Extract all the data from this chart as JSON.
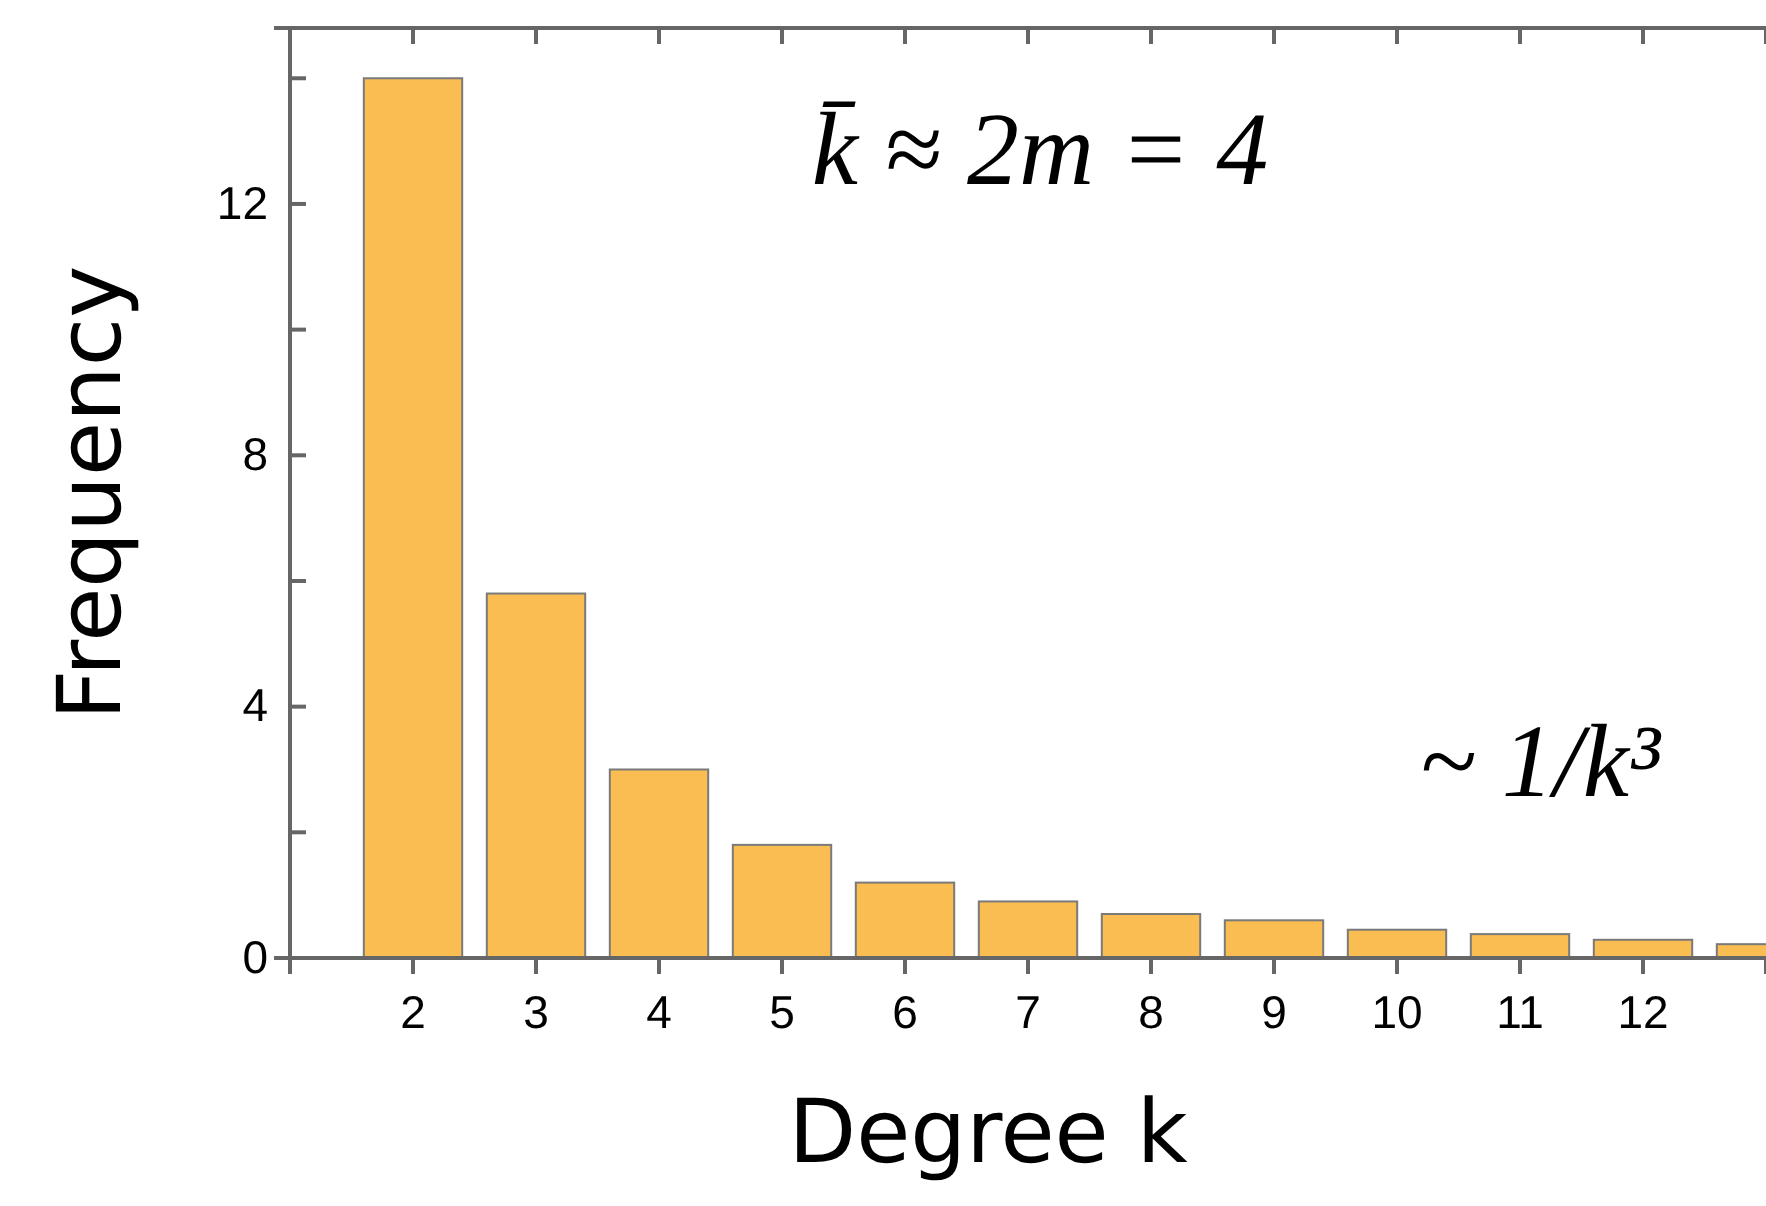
{
  "chart_data": {
    "type": "bar",
    "xlabel": "Degree k",
    "ylabel": "Frequency",
    "x": [
      2,
      3,
      4,
      5,
      6,
      7,
      8,
      9,
      10,
      11,
      12,
      13
    ],
    "values": [
      14.0,
      5.8,
      3.0,
      1.8,
      1.2,
      0.9,
      0.7,
      0.6,
      0.45,
      0.38,
      0.29,
      0.22
    ],
    "color": "#f9bd52",
    "xlim": [
      1,
      13
    ],
    "xticks": [
      {
        "value": 1,
        "label": null
      },
      2,
      3,
      4,
      5,
      6,
      7,
      8,
      9,
      10,
      11,
      12
    ],
    "ylim": [
      0,
      14.8
    ],
    "yticks": [
      0,
      {
        "value": 2,
        "label": null
      },
      4,
      {
        "value": 6,
        "label": null
      },
      8,
      {
        "value": 10,
        "label": null
      },
      12,
      {
        "value": 14,
        "label": null
      }
    ],
    "annotations": [
      "k̄ ≈ 2m = 4",
      "~ 1/k³"
    ],
    "grid": false
  }
}
